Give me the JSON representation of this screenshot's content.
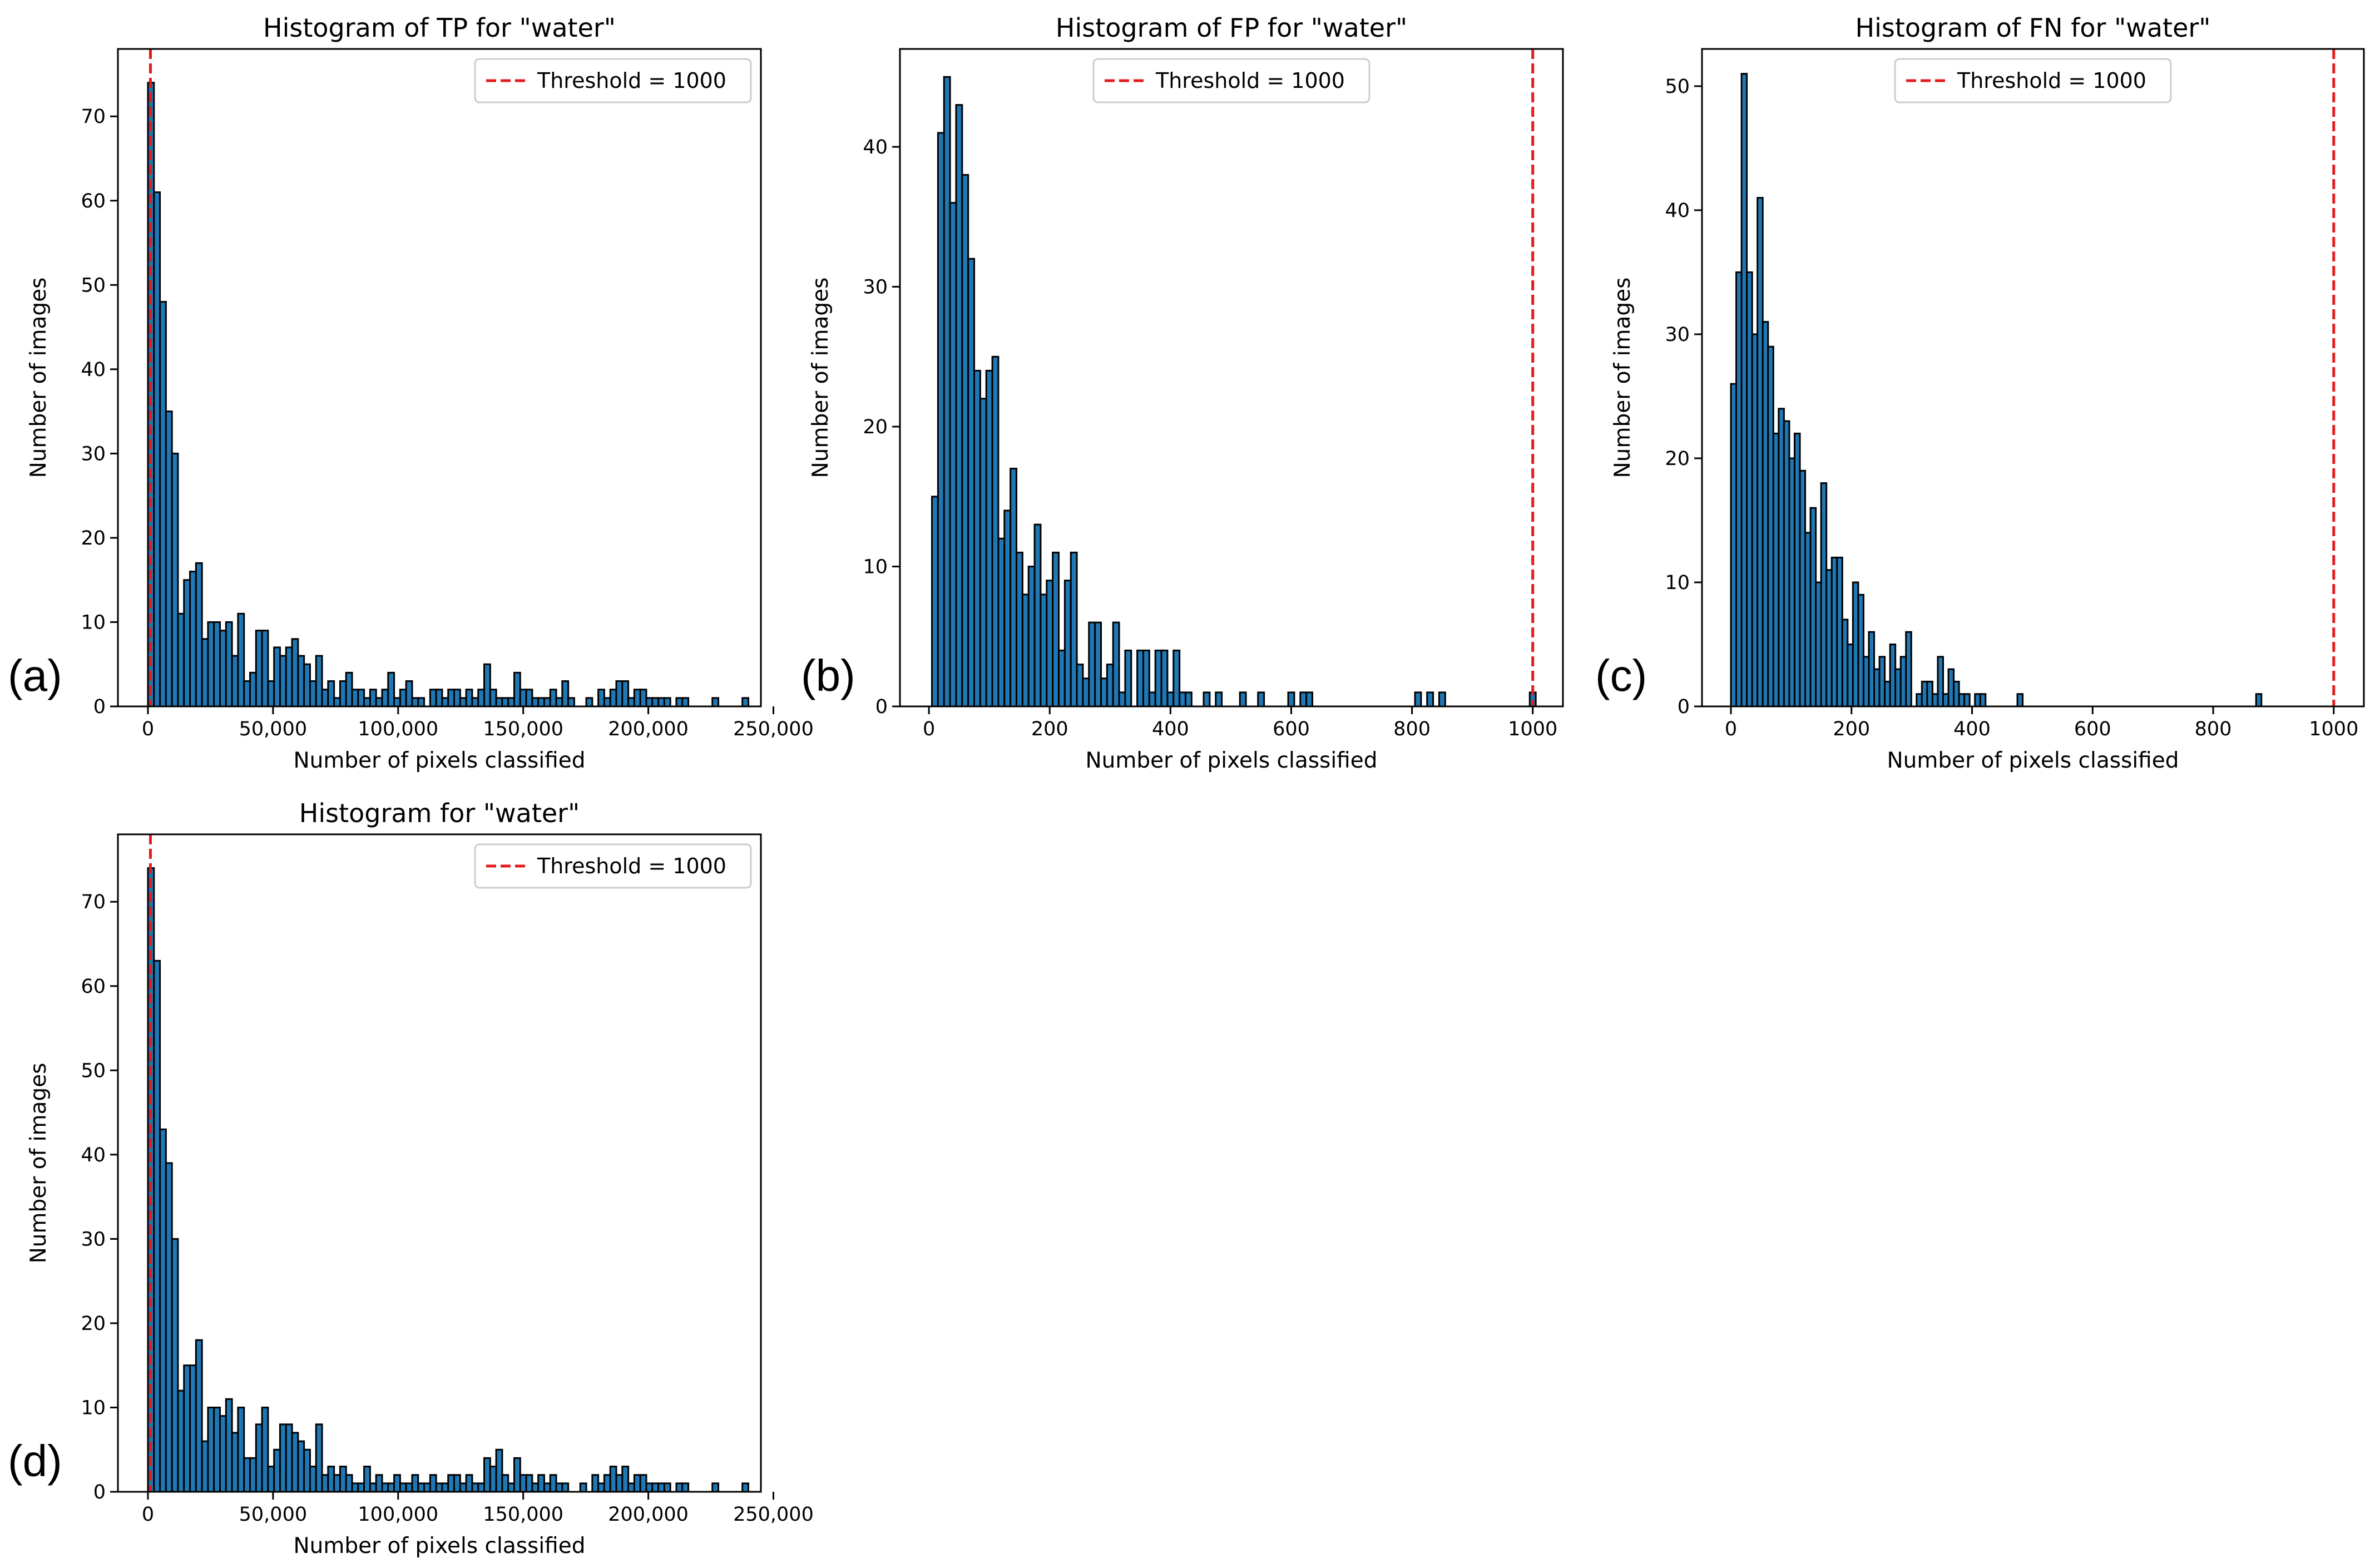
{
  "figure": {
    "panels": [
      "(a)",
      "(b)",
      "(c)",
      "(d)"
    ]
  },
  "colors": {
    "bar_fill": "#1f77b4",
    "bar_edge": "#000000",
    "threshold": "#e41a1c"
  },
  "chart_data": [
    {
      "id": "a",
      "panel_label": "(a)",
      "type": "bar",
      "title": "Histogram of TP for \"water\"",
      "xlabel": "Number of pixels classified",
      "ylabel": "Number of images",
      "xlim": [
        -12000,
        245000
      ],
      "ylim": [
        0,
        78
      ],
      "xticks": [
        0,
        50000,
        100000,
        150000,
        200000,
        250000
      ],
      "xtick_labels": [
        "0",
        "50,000",
        "100,000",
        "150,000",
        "200,000",
        "250,000"
      ],
      "yticks": [
        0,
        10,
        20,
        30,
        40,
        50,
        60,
        70
      ],
      "ytick_labels": [
        "0",
        "10",
        "20",
        "30",
        "40",
        "50",
        "60",
        "70"
      ],
      "bin_start": 0,
      "bin_width": 2400,
      "values": [
        74,
        61,
        48,
        35,
        30,
        11,
        15,
        16,
        17,
        8,
        10,
        10,
        9,
        10,
        6,
        11,
        3,
        4,
        9,
        9,
        3,
        7,
        6,
        7,
        8,
        6,
        5,
        3,
        6,
        2,
        3,
        1,
        3,
        4,
        2,
        2,
        1,
        2,
        1,
        2,
        4,
        1,
        2,
        3,
        1,
        1,
        0,
        2,
        2,
        1,
        2,
        2,
        1,
        2,
        1,
        2,
        5,
        2,
        1,
        1,
        1,
        4,
        2,
        2,
        1,
        1,
        1,
        2,
        1,
        3,
        1,
        0,
        0,
        1,
        0,
        2,
        1,
        2,
        3,
        3,
        1,
        2,
        2,
        1,
        1,
        1,
        1,
        0,
        1,
        1,
        0,
        0,
        0,
        0,
        1,
        0,
        0,
        0,
        0,
        1
      ],
      "threshold": 1000,
      "legend": "Threshold = 1000"
    },
    {
      "id": "b",
      "panel_label": "(b)",
      "type": "bar",
      "title": "Histogram of FP for \"water\"",
      "xlabel": "Number of pixels classified",
      "ylabel": "Number of images",
      "xlim": [
        -48,
        1050
      ],
      "ylim": [
        0,
        47
      ],
      "xticks": [
        0,
        200,
        400,
        600,
        800,
        1000
      ],
      "xtick_labels": [
        "0",
        "200",
        "400",
        "600",
        "800",
        "1000"
      ],
      "yticks": [
        0,
        10,
        20,
        30,
        40
      ],
      "ytick_labels": [
        "0",
        "10",
        "20",
        "30",
        "40"
      ],
      "bin_start": 5,
      "bin_width": 10,
      "values": [
        15,
        41,
        45,
        36,
        43,
        38,
        32,
        24,
        22,
        24,
        25,
        12,
        14,
        17,
        11,
        8,
        10,
        13,
        8,
        9,
        11,
        4,
        9,
        11,
        3,
        2,
        6,
        6,
        2,
        3,
        6,
        1,
        4,
        0,
        4,
        4,
        1,
        4,
        4,
        1,
        4,
        1,
        1,
        0,
        0,
        1,
        0,
        1,
        0,
        0,
        0,
        1,
        0,
        0,
        1,
        0,
        0,
        0,
        0,
        1,
        0,
        1,
        1,
        0,
        0,
        0,
        0,
        0,
        0,
        0,
        0,
        0,
        0,
        0,
        0,
        0,
        0,
        0,
        0,
        0,
        1,
        0,
        1,
        0,
        1,
        0,
        0,
        0,
        0,
        0,
        0,
        0,
        0,
        0,
        0,
        0,
        0,
        0,
        0,
        1
      ],
      "threshold": 1000,
      "legend": "Threshold = 1000"
    },
    {
      "id": "c",
      "panel_label": "(c)",
      "type": "bar",
      "title": "Histogram of FN for \"water\"",
      "xlabel": "Number of pixels classified",
      "ylabel": "Number of images",
      "xlim": [
        -48,
        1050
      ],
      "ylim": [
        0,
        53
      ],
      "xticks": [
        0,
        200,
        400,
        600,
        800,
        1000
      ],
      "xtick_labels": [
        "0",
        "200",
        "400",
        "600",
        "800",
        "1000"
      ],
      "yticks": [
        0,
        10,
        20,
        30,
        40,
        50
      ],
      "ytick_labels": [
        "0",
        "10",
        "20",
        "30",
        "40",
        "50"
      ],
      "bin_start": 0,
      "bin_width": 8.8,
      "values": [
        26,
        35,
        51,
        35,
        30,
        41,
        31,
        29,
        22,
        24,
        23,
        20,
        22,
        19,
        14,
        16,
        10,
        18,
        11,
        12,
        12,
        7,
        5,
        10,
        9,
        4,
        6,
        3,
        4,
        2,
        5,
        3,
        4,
        6,
        0,
        1,
        2,
        2,
        1,
        4,
        1,
        3,
        2,
        1,
        1,
        0,
        1,
        1,
        0,
        0,
        0,
        0,
        0,
        0,
        1,
        0,
        0,
        0,
        0,
        0,
        0,
        0,
        0,
        0,
        0,
        0,
        0,
        0,
        0,
        0,
        0,
        0,
        0,
        0,
        0,
        0,
        0,
        0,
        0,
        0,
        0,
        0,
        0,
        0,
        0,
        0,
        0,
        0,
        0,
        0,
        0,
        0,
        0,
        0,
        0,
        0,
        0,
        0,
        0,
        1
      ],
      "threshold": 1000,
      "legend": "Threshold = 1000"
    },
    {
      "id": "d",
      "panel_label": "(d)",
      "type": "bar",
      "title": "Histogram for \"water\"",
      "xlabel": "Number of pixels classified",
      "ylabel": "Number of images",
      "xlim": [
        -12000,
        245000
      ],
      "ylim": [
        0,
        78
      ],
      "xticks": [
        0,
        50000,
        100000,
        150000,
        200000,
        250000
      ],
      "xtick_labels": [
        "0",
        "50,000",
        "100,000",
        "150,000",
        "200,000",
        "250,000"
      ],
      "yticks": [
        0,
        10,
        20,
        30,
        40,
        50,
        60,
        70
      ],
      "ytick_labels": [
        "0",
        "10",
        "20",
        "30",
        "40",
        "50",
        "60",
        "70"
      ],
      "bin_start": 0,
      "bin_width": 2400,
      "values": [
        74,
        63,
        43,
        39,
        30,
        12,
        15,
        15,
        18,
        6,
        10,
        10,
        9,
        11,
        7,
        10,
        4,
        4,
        8,
        10,
        3,
        5,
        8,
        8,
        7,
        6,
        5,
        3,
        8,
        2,
        3,
        2,
        3,
        2,
        1,
        1,
        3,
        1,
        2,
        1,
        1,
        2,
        1,
        1,
        2,
        1,
        1,
        2,
        1,
        1,
        2,
        2,
        1,
        2,
        1,
        1,
        4,
        3,
        5,
        2,
        1,
        4,
        2,
        2,
        1,
        2,
        1,
        2,
        1,
        1,
        0,
        0,
        1,
        0,
        2,
        1,
        2,
        3,
        2,
        3,
        1,
        2,
        2,
        1,
        1,
        1,
        1,
        0,
        1,
        1,
        0,
        0,
        0,
        0,
        1,
        0,
        0,
        0,
        0,
        1
      ],
      "threshold": 1000,
      "legend": "Threshold = 1000"
    }
  ]
}
